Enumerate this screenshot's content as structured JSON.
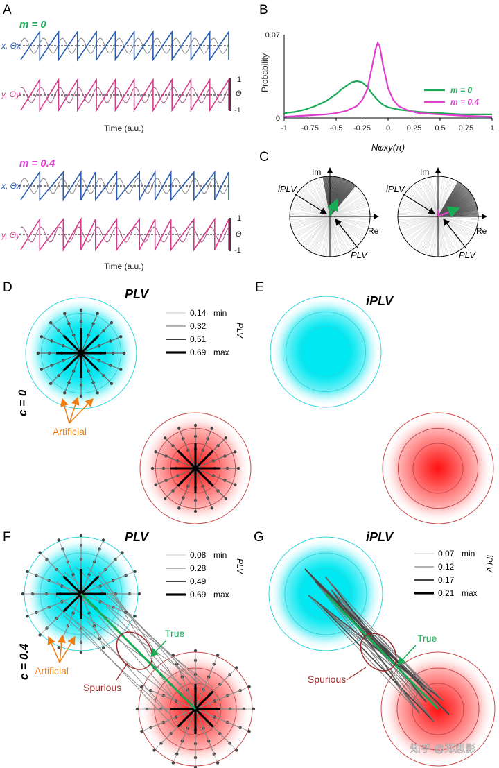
{
  "colors": {
    "blue": "#2a5db0",
    "pink": "#d63a8c",
    "green": "#1aaa55",
    "magenta": "#e040d0",
    "cyan": "#00e5f0",
    "red": "#ff2020",
    "orange": "#ee7d12",
    "brown": "#9b2c2c"
  },
  "panels": {
    "A": "A",
    "B": "B",
    "C": "C",
    "D": "D",
    "E": "E",
    "F": "F",
    "G": "G"
  },
  "panel_a": {
    "top": {
      "m_label": "m = 0",
      "x_label": "x, Θx",
      "y_label": "y, Θy",
      "time_label": "Time (a.u.)",
      "scale_top": "1",
      "scale_mid": "Θ",
      "scale_bot": "-1"
    },
    "bottom": {
      "m_label": "m = 0.4",
      "x_label": "x, Θx",
      "y_label": "y, Θy",
      "time_label": "Time (a.u.)",
      "scale_top": "1",
      "scale_mid": "Θ",
      "scale_bot": "-1"
    }
  },
  "chart_data": {
    "type": "line",
    "title": "",
    "xlabel": "Nφxy(π)",
    "ylabel": "Probability",
    "xlim": [
      -1,
      1
    ],
    "ylim": [
      0,
      0.07
    ],
    "xticks": [
      "-1",
      "-0.75",
      "-0.5",
      "-0.25",
      "0",
      "0.25",
      "0.5",
      "0.75",
      "1"
    ],
    "yticks": [
      "0",
      "0.07"
    ],
    "legend_position": "right",
    "series": [
      {
        "name": "m = 0",
        "color": "#1aaa55",
        "x": [
          -1,
          -0.9,
          -0.8,
          -0.7,
          -0.6,
          -0.5,
          -0.45,
          -0.4,
          -0.35,
          -0.3,
          -0.25,
          -0.2,
          -0.15,
          -0.1,
          -0.05,
          0,
          0.05,
          0.1,
          0.2,
          0.3,
          0.5,
          0.7,
          1
        ],
        "values": [
          0.004,
          0.005,
          0.007,
          0.01,
          0.014,
          0.02,
          0.024,
          0.027,
          0.03,
          0.031,
          0.03,
          0.026,
          0.02,
          0.015,
          0.011,
          0.009,
          0.008,
          0.007,
          0.006,
          0.005,
          0.004,
          0.003,
          0.003
        ]
      },
      {
        "name": "m = 0.4",
        "color": "#e040d0",
        "x": [
          -1,
          -0.8,
          -0.6,
          -0.5,
          -0.4,
          -0.3,
          -0.25,
          -0.2,
          -0.15,
          -0.12,
          -0.1,
          -0.08,
          -0.05,
          0,
          0.05,
          0.1,
          0.2,
          0.3,
          0.5,
          0.7,
          1
        ],
        "values": [
          0.001,
          0.002,
          0.003,
          0.004,
          0.006,
          0.01,
          0.015,
          0.024,
          0.045,
          0.058,
          0.063,
          0.06,
          0.045,
          0.025,
          0.015,
          0.01,
          0.006,
          0.004,
          0.003,
          0.002,
          0.001
        ]
      }
    ]
  },
  "panel_c": {
    "im": "Im",
    "re": "Re",
    "iplv": "iPLV",
    "plv": "PLV"
  },
  "panel_d": {
    "title": "PLV",
    "legend": [
      {
        "value": "0.14",
        "tag": "min"
      },
      {
        "value": "0.32",
        "tag": ""
      },
      {
        "value": "0.51",
        "tag": ""
      },
      {
        "value": "0.69",
        "tag": "max"
      }
    ],
    "side_label": "PLV",
    "artificial": "Artificial"
  },
  "row_c0": "c = 0",
  "panel_e": {
    "title": "iPLV"
  },
  "panel_f": {
    "title": "PLV",
    "legend": [
      {
        "value": "0.08",
        "tag": "min"
      },
      {
        "value": "0.28",
        "tag": ""
      },
      {
        "value": "0.49",
        "tag": ""
      },
      {
        "value": "0.69",
        "tag": "max"
      }
    ],
    "side_label": "PLV",
    "artificial": "Artificial",
    "true_label": "True",
    "spurious": "Spurious"
  },
  "row_c04": "c = 0.4",
  "panel_g": {
    "title": "iPLV",
    "legend": [
      {
        "value": "0.07",
        "tag": "min"
      },
      {
        "value": "0.12",
        "tag": ""
      },
      {
        "value": "0.17",
        "tag": ""
      },
      {
        "value": "0.21",
        "tag": "max"
      }
    ],
    "side_label": "iPLV",
    "true_label": "True",
    "spurious": "Spurious"
  },
  "watermark": "知乎 @郑思影"
}
